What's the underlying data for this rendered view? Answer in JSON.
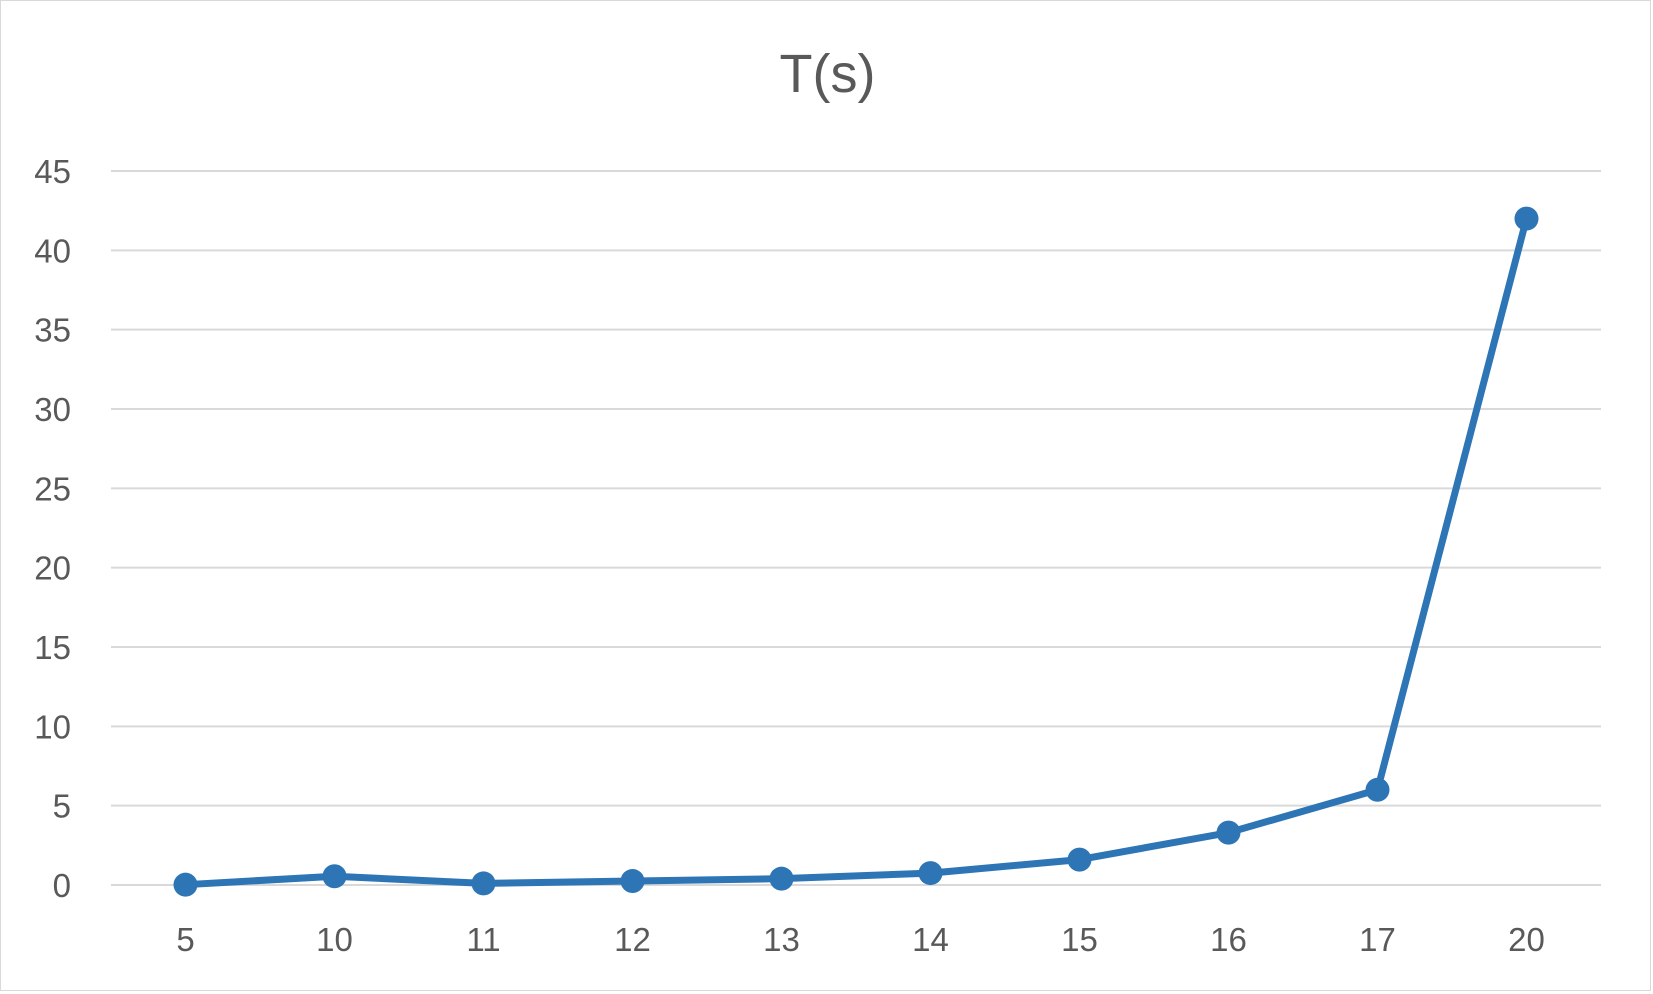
{
  "chart_data": {
    "type": "line",
    "title": "T(s)",
    "xlabel": "",
    "ylabel": "",
    "categories": [
      "5",
      "10",
      "11",
      "12",
      "13",
      "14",
      "15",
      "16",
      "17",
      "20"
    ],
    "series": [
      {
        "values": [
          0.02,
          0.55,
          0.1,
          0.25,
          0.4,
          0.75,
          1.6,
          3.3,
          6.0,
          42.0
        ],
        "color": "#2e75b6"
      }
    ],
    "ylim": [
      0,
      45
    ],
    "yticks": [
      "0",
      "5",
      "10",
      "15",
      "20",
      "25",
      "30",
      "35",
      "40",
      "45"
    ],
    "grid": true,
    "legend": "none"
  }
}
